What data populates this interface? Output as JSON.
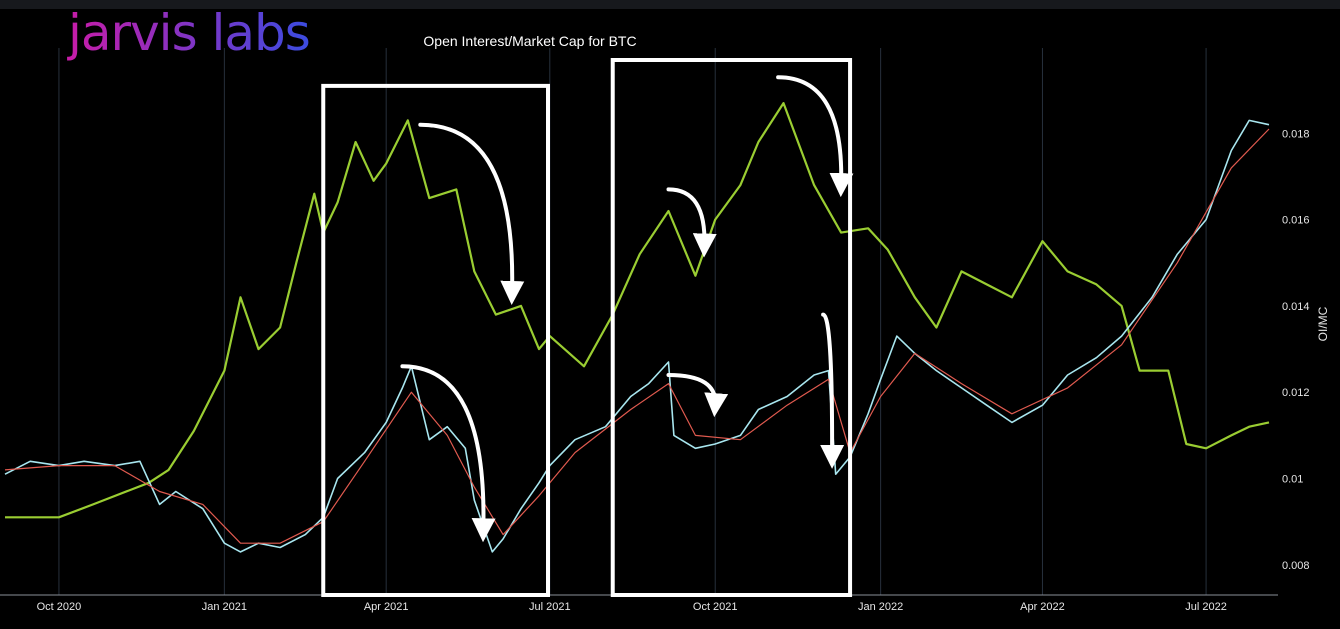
{
  "brand": {
    "name": "jarvis labs",
    "gradient": [
      "#c81ca8",
      "#3b4ce0"
    ]
  },
  "colors": {
    "background": "#000000",
    "price_line": "#9acd32",
    "oi_line": "#a8e6ef",
    "oi_ma_line": "#e05a4f",
    "annotation": "#ffffff",
    "grid": "#27303c"
  },
  "chart_data": {
    "type": "line",
    "title": "Open Interest/Market Cap for BTC",
    "ylabel": "OI/MC",
    "ylim": [
      0.0073,
      0.0197
    ],
    "xlim": [
      "2020-09-01",
      "2022-08-10"
    ],
    "x_tick_labels": [
      "Oct 2020",
      "Jan 2021",
      "Apr 2021",
      "Jul 2021",
      "Oct 2021",
      "Jan 2022",
      "Apr 2022",
      "Jul 2022"
    ],
    "x_ticks": [
      "2020-10-01",
      "2021-01-01",
      "2021-04-01",
      "2021-07-01",
      "2021-10-01",
      "2022-01-01",
      "2022-04-01",
      "2022-07-01"
    ],
    "y_tick_labels": [
      "0.008",
      "0.01",
      "0.012",
      "0.014",
      "0.016",
      "0.018"
    ],
    "y_ticks": [
      0.008,
      0.01,
      0.012,
      0.014,
      0.016,
      0.018
    ],
    "grid": "vertical",
    "series": [
      {
        "role": "oi_mc",
        "color": "#a8e6ef",
        "points": [
          [
            "2020-09-01",
            0.0101
          ],
          [
            "2020-09-15",
            0.0104
          ],
          [
            "2020-10-01",
            0.0103
          ],
          [
            "2020-10-15",
            0.0104
          ],
          [
            "2020-11-01",
            0.0103
          ],
          [
            "2020-11-15",
            0.0104
          ],
          [
            "2020-11-26",
            0.0094
          ],
          [
            "2020-12-05",
            0.0097
          ],
          [
            "2020-12-20",
            0.0093
          ],
          [
            "2021-01-01",
            0.0085
          ],
          [
            "2021-01-10",
            0.0083
          ],
          [
            "2021-01-20",
            0.0085
          ],
          [
            "2021-02-01",
            0.0084
          ],
          [
            "2021-02-15",
            0.0087
          ],
          [
            "2021-02-25",
            0.0091
          ],
          [
            "2021-03-05",
            0.01
          ],
          [
            "2021-03-20",
            0.0106
          ],
          [
            "2021-04-01",
            0.0113
          ],
          [
            "2021-04-10",
            0.0121
          ],
          [
            "2021-04-15",
            0.0126
          ],
          [
            "2021-04-25",
            0.0109
          ],
          [
            "2021-05-05",
            0.0112
          ],
          [
            "2021-05-15",
            0.0107
          ],
          [
            "2021-05-20",
            0.0095
          ],
          [
            "2021-05-30",
            0.0083
          ],
          [
            "2021-06-05",
            0.0086
          ],
          [
            "2021-06-15",
            0.0093
          ],
          [
            "2021-06-25",
            0.0099
          ],
          [
            "2021-07-01",
            0.0103
          ],
          [
            "2021-07-15",
            0.0109
          ],
          [
            "2021-08-01",
            0.0112
          ],
          [
            "2021-08-15",
            0.0119
          ],
          [
            "2021-08-25",
            0.0122
          ],
          [
            "2021-09-05",
            0.0127
          ],
          [
            "2021-09-08",
            0.011
          ],
          [
            "2021-09-20",
            0.0107
          ],
          [
            "2021-10-01",
            0.0108
          ],
          [
            "2021-10-15",
            0.011
          ],
          [
            "2021-10-25",
            0.0116
          ],
          [
            "2021-11-10",
            0.0119
          ],
          [
            "2021-11-25",
            0.0124
          ],
          [
            "2021-12-03",
            0.0125
          ],
          [
            "2021-12-07",
            0.0101
          ],
          [
            "2021-12-15",
            0.0105
          ],
          [
            "2021-12-25",
            0.0115
          ],
          [
            "2022-01-01",
            0.0123
          ],
          [
            "2022-01-10",
            0.0133
          ],
          [
            "2022-01-20",
            0.0129
          ],
          [
            "2022-02-01",
            0.0125
          ],
          [
            "2022-02-15",
            0.0121
          ],
          [
            "2022-03-01",
            0.0117
          ],
          [
            "2022-03-15",
            0.0113
          ],
          [
            "2022-04-01",
            0.0117
          ],
          [
            "2022-04-15",
            0.0124
          ],
          [
            "2022-05-01",
            0.0128
          ],
          [
            "2022-05-15",
            0.0133
          ],
          [
            "2022-06-01",
            0.0142
          ],
          [
            "2022-06-15",
            0.0152
          ],
          [
            "2022-07-01",
            0.016
          ],
          [
            "2022-07-15",
            0.0176
          ],
          [
            "2022-07-25",
            0.0183
          ],
          [
            "2022-08-05",
            0.0182
          ]
        ]
      },
      {
        "role": "oi_mc_moving_average",
        "color": "#e05a4f",
        "points": [
          [
            "2020-09-01",
            0.0102
          ],
          [
            "2020-10-01",
            0.0103
          ],
          [
            "2020-11-01",
            0.0103
          ],
          [
            "2020-11-26",
            0.0097
          ],
          [
            "2020-12-20",
            0.0094
          ],
          [
            "2021-01-10",
            0.0085
          ],
          [
            "2021-02-01",
            0.0085
          ],
          [
            "2021-02-25",
            0.009
          ],
          [
            "2021-03-20",
            0.0104
          ],
          [
            "2021-04-15",
            0.012
          ],
          [
            "2021-05-05",
            0.011
          ],
          [
            "2021-05-20",
            0.0098
          ],
          [
            "2021-06-05",
            0.0087
          ],
          [
            "2021-06-25",
            0.0096
          ],
          [
            "2021-07-15",
            0.0106
          ],
          [
            "2021-08-15",
            0.0116
          ],
          [
            "2021-09-05",
            0.0122
          ],
          [
            "2021-09-20",
            0.011
          ],
          [
            "2021-10-15",
            0.0109
          ],
          [
            "2021-11-10",
            0.0117
          ],
          [
            "2021-12-03",
            0.0123
          ],
          [
            "2021-12-15",
            0.0106
          ],
          [
            "2022-01-01",
            0.0119
          ],
          [
            "2022-01-20",
            0.0129
          ],
          [
            "2022-02-15",
            0.0122
          ],
          [
            "2022-03-15",
            0.0115
          ],
          [
            "2022-04-15",
            0.0121
          ],
          [
            "2022-05-15",
            0.0131
          ],
          [
            "2022-06-15",
            0.015
          ],
          [
            "2022-07-15",
            0.0172
          ],
          [
            "2022-08-05",
            0.0181
          ]
        ]
      },
      {
        "role": "price_overlay",
        "color": "#9acd32",
        "points": [
          [
            "2020-09-01",
            0.0091
          ],
          [
            "2020-10-01",
            0.0091
          ],
          [
            "2020-10-20",
            0.0094
          ],
          [
            "2020-11-20",
            0.0099
          ],
          [
            "2020-12-01",
            0.0102
          ],
          [
            "2020-12-15",
            0.0111
          ],
          [
            "2021-01-01",
            0.0125
          ],
          [
            "2021-01-10",
            0.0142
          ],
          [
            "2021-01-20",
            0.013
          ],
          [
            "2021-02-01",
            0.0135
          ],
          [
            "2021-02-10",
            0.015
          ],
          [
            "2021-02-20",
            0.0166
          ],
          [
            "2021-02-25",
            0.0157
          ],
          [
            "2021-03-05",
            0.0164
          ],
          [
            "2021-03-15",
            0.0178
          ],
          [
            "2021-03-25",
            0.0169
          ],
          [
            "2021-04-01",
            0.0173
          ],
          [
            "2021-04-13",
            0.0183
          ],
          [
            "2021-04-25",
            0.0165
          ],
          [
            "2021-05-10",
            0.0167
          ],
          [
            "2021-05-20",
            0.0148
          ],
          [
            "2021-06-01",
            0.0138
          ],
          [
            "2021-06-15",
            0.014
          ],
          [
            "2021-06-25",
            0.013
          ],
          [
            "2021-07-01",
            0.0133
          ],
          [
            "2021-07-20",
            0.0126
          ],
          [
            "2021-08-05",
            0.0138
          ],
          [
            "2021-08-20",
            0.0152
          ],
          [
            "2021-09-05",
            0.0162
          ],
          [
            "2021-09-20",
            0.0147
          ],
          [
            "2021-10-01",
            0.016
          ],
          [
            "2021-10-15",
            0.0168
          ],
          [
            "2021-10-25",
            0.0178
          ],
          [
            "2021-11-08",
            0.0187
          ],
          [
            "2021-11-25",
            0.0168
          ],
          [
            "2021-12-10",
            0.0157
          ],
          [
            "2021-12-25",
            0.0158
          ],
          [
            "2022-01-05",
            0.0153
          ],
          [
            "2022-01-20",
            0.0142
          ],
          [
            "2022-02-01",
            0.0135
          ],
          [
            "2022-02-15",
            0.0148
          ],
          [
            "2022-03-01",
            0.0145
          ],
          [
            "2022-03-15",
            0.0142
          ],
          [
            "2022-04-01",
            0.0155
          ],
          [
            "2022-04-15",
            0.0148
          ],
          [
            "2022-05-01",
            0.0145
          ],
          [
            "2022-05-15",
            0.014
          ],
          [
            "2022-05-25",
            0.0125
          ],
          [
            "2022-06-10",
            0.0125
          ],
          [
            "2022-06-20",
            0.0108
          ],
          [
            "2022-07-01",
            0.0107
          ],
          [
            "2022-07-15",
            0.011
          ],
          [
            "2022-07-25",
            0.0112
          ],
          [
            "2022-08-05",
            0.0113
          ]
        ]
      }
    ],
    "annotations": [
      {
        "type": "box",
        "x": [
          "2021-02-25",
          "2021-06-30"
        ],
        "y": [
          0.0073,
          0.0191
        ]
      },
      {
        "type": "box",
        "x": [
          "2021-08-05",
          "2021-12-15"
        ],
        "y": [
          0.0073,
          0.0197
        ]
      },
      {
        "type": "arrow",
        "from": [
          "2021-04-20",
          0.0182
        ],
        "to": [
          "2021-06-10",
          0.0143
        ]
      },
      {
        "type": "arrow",
        "from": [
          "2021-04-10",
          0.0126
        ],
        "to": [
          "2021-05-25",
          0.0088
        ]
      },
      {
        "type": "arrow",
        "from": [
          "2021-09-05",
          0.0167
        ],
        "to": [
          "2021-09-25",
          0.0154
        ]
      },
      {
        "type": "arrow",
        "from": [
          "2021-09-05",
          0.0124
        ],
        "to": [
          "2021-10-01",
          0.0117
        ]
      },
      {
        "type": "arrow",
        "from": [
          "2021-11-05",
          0.0193
        ],
        "to": [
          "2021-12-10",
          0.0168
        ]
      },
      {
        "type": "arrow",
        "from": [
          "2021-11-30",
          0.0138
        ],
        "to": [
          "2021-12-05",
          0.0105
        ]
      }
    ]
  }
}
